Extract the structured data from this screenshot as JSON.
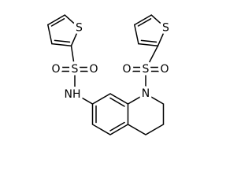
{
  "atoms": [
    {
      "label": "S"
    },
    {
      "label": "S"
    },
    {
      "label": "O"
    },
    {
      "label": "O"
    },
    {
      "label": "NH"
    },
    {
      "label": "S"
    },
    {
      "label": "S"
    },
    {
      "label": "O"
    },
    {
      "label": "O"
    },
    {
      "label": "N"
    }
  ]
}
